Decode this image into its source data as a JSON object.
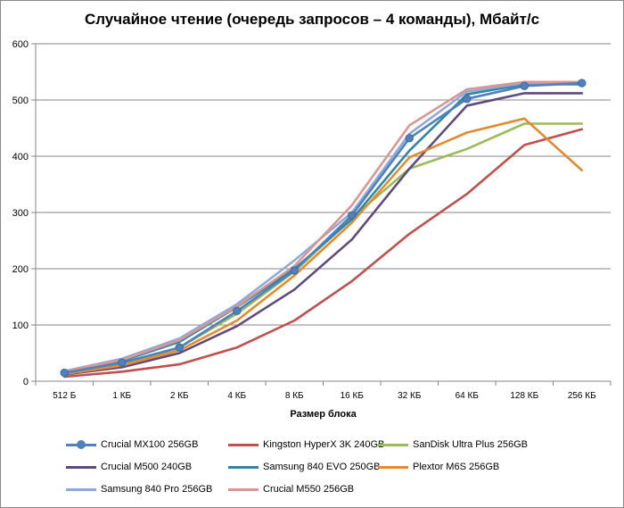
{
  "chart_data": {
    "type": "line",
    "title": "Случайное чтение (очередь запросов – 4 команды), Мбайт/с",
    "xlabel": "Размер блока",
    "ylabel": "",
    "categories": [
      "512 Б",
      "1 КБ",
      "2 КБ",
      "4 КБ",
      "8 КБ",
      "16 КБ",
      "32 КБ",
      "64 КБ",
      "128 КБ",
      "256 КБ"
    ],
    "ylim": [
      0,
      600
    ],
    "yticks": [
      "0",
      "100",
      "200",
      "300",
      "400",
      "500",
      "600"
    ],
    "grid": "horizontal",
    "legend_position": "bottom",
    "series": [
      {
        "name": "Crucial MX100 256GB",
        "color": "#4f81bd",
        "marker": "circle",
        "values": [
          15,
          33,
          60,
          125,
          197,
          295,
          432,
          502,
          525,
          530
        ]
      },
      {
        "name": "Kingston HyperX 3K 240GB",
        "color": "#c0504d",
        "marker": "none",
        "values": [
          8,
          17,
          30,
          60,
          108,
          178,
          262,
          333,
          420,
          448
        ]
      },
      {
        "name": "SanDisk Ultra Plus 256GB",
        "color": "#9bbb59",
        "marker": "none",
        "values": [
          14,
          30,
          60,
          120,
          195,
          290,
          378,
          413,
          458,
          458
        ]
      },
      {
        "name": "Crucial M500 240GB",
        "color": "#604a7b",
        "marker": "none",
        "values": [
          12,
          25,
          50,
          98,
          163,
          252,
          378,
          490,
          512,
          512
        ]
      },
      {
        "name": "Samsung 840 EVO 250GB",
        "color": "#31859c",
        "marker": "none",
        "values": [
          16,
          36,
          70,
          132,
          200,
          288,
          410,
          510,
          528,
          528
        ]
      },
      {
        "name": "Plextor M6S 256GB",
        "color": "#e38a2f",
        "marker": "none",
        "values": [
          13,
          28,
          55,
          108,
          188,
          282,
          398,
          442,
          467,
          375
        ]
      },
      {
        "name": "Samsung 840 Pro 256GB",
        "color": "#8eaadb",
        "marker": "none",
        "values": [
          18,
          40,
          76,
          137,
          215,
          300,
          440,
          515,
          530,
          530
        ]
      },
      {
        "name": "Crucial M550 256GB",
        "color": "#d99694",
        "marker": "none",
        "values": [
          17,
          38,
          73,
          133,
          205,
          313,
          455,
          519,
          532,
          532
        ]
      }
    ]
  }
}
